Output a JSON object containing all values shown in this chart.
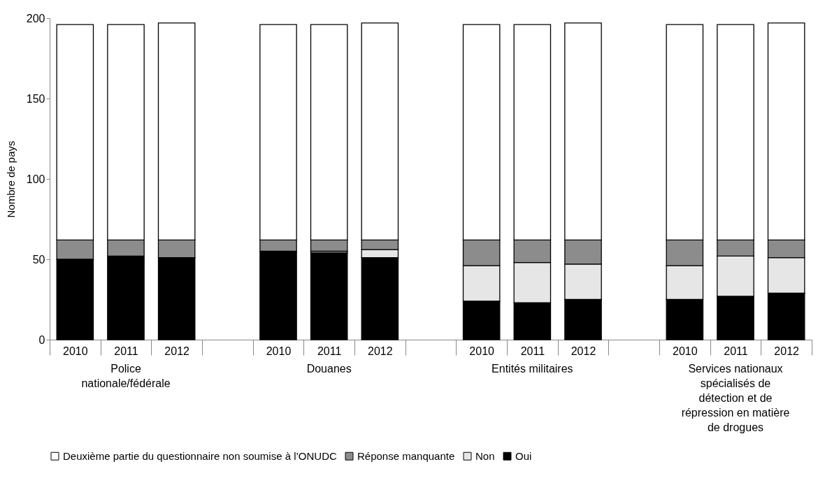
{
  "chart_data": {
    "type": "bar",
    "stacked": true,
    "ylabel": "Nombre de pays",
    "ylim": [
      0,
      200
    ],
    "yticks": [
      0,
      50,
      100,
      150,
      200
    ],
    "grid": false,
    "legend": "bottom",
    "categories": [
      "2010",
      "2011",
      "2012",
      null,
      "2010",
      "2011",
      "2012",
      null,
      "2010",
      "2011",
      "2012",
      null,
      "2010",
      "2011",
      "2012"
    ],
    "series": [
      {
        "name": "Oui",
        "color": "#000000",
        "values": [
          50,
          52,
          51,
          null,
          55,
          54,
          51,
          null,
          24,
          23,
          25,
          null,
          25,
          27,
          29
        ]
      },
      {
        "name": "Non",
        "color": "#e6e6e6",
        "values": [
          null,
          null,
          null,
          null,
          null,
          1,
          5,
          null,
          22,
          25,
          22,
          null,
          21,
          25,
          22
        ]
      },
      {
        "name": "Réponse manquante",
        "color": "#8c8c8c",
        "values": [
          12,
          10,
          11,
          null,
          7,
          7,
          6,
          null,
          16,
          14,
          15,
          null,
          16,
          10,
          11
        ]
      },
      {
        "name": "Deuxième partie du questionnaire non soumise à l’ONUDC",
        "color": "#ffffff",
        "values": [
          134,
          134,
          135,
          null,
          134,
          134,
          135,
          null,
          134,
          134,
          135,
          null,
          134,
          134,
          135
        ]
      }
    ],
    "annotations": [
      "Police nationale/fédérale",
      "Douanes",
      "Entités militaires",
      "Services nationaux spécialisés de détection et de répression en matière de drogues"
    ]
  }
}
